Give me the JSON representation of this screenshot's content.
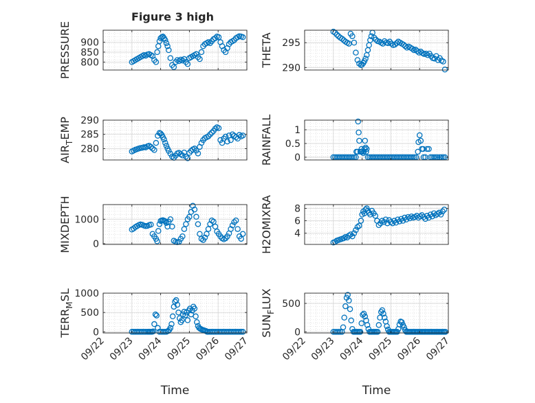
{
  "figure": {
    "title": "Figure 3 high"
  },
  "x_axis": {
    "label": "Time",
    "ticks": [
      "09/22",
      "09/23",
      "09/24",
      "09/25",
      "09/26",
      "09/27"
    ]
  },
  "colors": {
    "series": "#0072BD",
    "grid": "#d9d9d9",
    "axis": "#262626"
  },
  "chart_data": [
    {
      "type": "scatter",
      "ylabel": "PRESSURE",
      "ylabel_parts": [
        "PRESSURE",
        "",
        ""
      ],
      "ylim": [
        760,
        960
      ],
      "yticks": [
        800,
        850,
        900
      ],
      "ytick_labels": [
        "800",
        "850",
        "900"
      ],
      "x": [
        1.0,
        1.06,
        1.12,
        1.18,
        1.24,
        1.3,
        1.36,
        1.42,
        1.48,
        1.54,
        1.6,
        1.66,
        1.72,
        1.78,
        1.84,
        1.88,
        1.92,
        1.96,
        2.0,
        2.04,
        2.08,
        2.12,
        2.16,
        2.2,
        2.24,
        2.28,
        2.34,
        2.4,
        2.46,
        2.52,
        2.58,
        2.64,
        2.7,
        2.76,
        2.82,
        2.88,
        2.94,
        3.0,
        3.06,
        3.12,
        3.18,
        3.24,
        3.3,
        3.36,
        3.42,
        3.48,
        3.54,
        3.6,
        3.66,
        3.72,
        3.78,
        3.84,
        3.9,
        3.96,
        4.02,
        4.08,
        4.14,
        4.2,
        4.26,
        4.32,
        4.38,
        4.44,
        4.5,
        4.56,
        4.62,
        4.68,
        4.74,
        4.8,
        4.86
      ],
      "y": [
        800,
        805,
        810,
        815,
        820,
        825,
        830,
        835,
        832,
        838,
        840,
        835,
        830,
        810,
        800,
        850,
        880,
        905,
        920,
        925,
        928,
        920,
        910,
        895,
        880,
        860,
        820,
        785,
        775,
        800,
        810,
        805,
        812,
        808,
        815,
        800,
        790,
        820,
        825,
        830,
        835,
        840,
        825,
        815,
        850,
        880,
        890,
        895,
        900,
        895,
        905,
        915,
        920,
        928,
        925,
        900,
        880,
        860,
        850,
        870,
        890,
        900,
        905,
        910,
        920,
        925,
        930,
        928,
        925
      ]
    },
    {
      "type": "scatter",
      "ylabel": "THETA",
      "ylabel_parts": [
        "THETA",
        "",
        ""
      ],
      "ylim": [
        289.5,
        297.5
      ],
      "yticks": [
        290,
        295
      ],
      "ytick_labels": [
        "290",
        "295"
      ],
      "x": [
        1.0,
        1.06,
        1.12,
        1.18,
        1.24,
        1.3,
        1.36,
        1.42,
        1.48,
        1.54,
        1.6,
        1.66,
        1.72,
        1.78,
        1.84,
        1.9,
        1.96,
        2.0,
        2.04,
        2.08,
        2.12,
        2.16,
        2.2,
        2.24,
        2.28,
        2.32,
        2.36,
        2.42,
        2.48,
        2.54,
        2.6,
        2.66,
        2.72,
        2.78,
        2.84,
        2.9,
        2.96,
        3.02,
        3.08,
        3.14,
        3.2,
        3.26,
        3.32,
        3.38,
        3.44,
        3.5,
        3.56,
        3.62,
        3.68,
        3.74,
        3.8,
        3.86,
        3.92,
        3.98,
        4.04,
        4.1,
        4.16,
        4.22,
        4.28,
        4.34,
        4.4,
        4.46,
        4.52,
        4.58,
        4.64,
        4.7,
        4.76,
        4.82,
        4.88
      ],
      "y": [
        297.2,
        297.0,
        296.6,
        296.3,
        296.0,
        295.8,
        295.5,
        295.2,
        295.0,
        294.8,
        296.8,
        296.3,
        295.0,
        293.0,
        291.5,
        290.8,
        290.5,
        290.6,
        290.9,
        291.3,
        291.8,
        292.5,
        293.5,
        294.5,
        295.5,
        296.3,
        297.0,
        296.0,
        295.6,
        295.3,
        295.2,
        295.0,
        294.8,
        295.3,
        295.0,
        294.9,
        295.2,
        294.8,
        294.5,
        294.6,
        294.9,
        295.2,
        295.0,
        294.8,
        294.6,
        294.3,
        294.0,
        294.2,
        294.0,
        293.8,
        293.5,
        293.6,
        293.3,
        293.0,
        293.2,
        292.9,
        292.7,
        292.8,
        292.5,
        292.8,
        292.3,
        291.9,
        291.8,
        292.3,
        291.5,
        291.9,
        291.4,
        291.2,
        289.6
      ]
    },
    {
      "type": "scatter",
      "ylabel": "AIR_TEMP",
      "ylabel_parts": [
        "AIR",
        "T",
        "EMP"
      ],
      "ylim": [
        276,
        290
      ],
      "yticks": [
        280,
        285,
        290
      ],
      "ytick_labels": [
        "280",
        "285",
        "290"
      ],
      "x": [
        1.0,
        1.06,
        1.12,
        1.18,
        1.24,
        1.3,
        1.36,
        1.42,
        1.48,
        1.54,
        1.6,
        1.66,
        1.72,
        1.78,
        1.84,
        1.9,
        1.96,
        2.0,
        2.04,
        2.08,
        2.12,
        2.16,
        2.2,
        2.24,
        2.28,
        2.34,
        2.4,
        2.46,
        2.52,
        2.58,
        2.64,
        2.7,
        2.76,
        2.82,
        2.88,
        2.94,
        3.0,
        3.06,
        3.12,
        3.18,
        3.24,
        3.3,
        3.36,
        3.42,
        3.48,
        3.54,
        3.6,
        3.66,
        3.72,
        3.78,
        3.84,
        3.9,
        3.96,
        4.02,
        4.08,
        4.14,
        4.2,
        4.26,
        4.32,
        4.38,
        4.44,
        4.5,
        4.56,
        4.62,
        4.68,
        4.74,
        4.8,
        4.86
      ],
      "y": [
        279.0,
        279.3,
        279.6,
        279.8,
        280.0,
        280.2,
        280.3,
        280.5,
        280.4,
        280.8,
        281.0,
        280.6,
        280.0,
        279.5,
        282.0,
        284.5,
        285.5,
        285.3,
        284.8,
        284.0,
        283.2,
        282.0,
        281.0,
        280.0,
        279.2,
        278.2,
        277.2,
        276.8,
        277.5,
        278.3,
        278.5,
        278.0,
        277.6,
        278.6,
        277.2,
        276.6,
        278.5,
        279.2,
        279.7,
        280.0,
        279.3,
        278.3,
        280.6,
        282.0,
        283.0,
        283.7,
        284.0,
        284.3,
        285.0,
        285.6,
        286.2,
        287.0,
        287.5,
        287.2,
        283.0,
        282.0,
        283.5,
        284.2,
        282.5,
        284.6,
        283.0,
        285.0,
        284.5,
        284.0,
        283.5,
        284.8,
        284.3,
        284.6
      ]
    },
    {
      "type": "scatter",
      "ylabel": "RAINFALL",
      "ylabel_parts": [
        "RAINFALL",
        "",
        ""
      ],
      "ylim": [
        -0.1,
        1.35
      ],
      "yticks": [
        0,
        0.5,
        1
      ],
      "ytick_labels": [
        "0",
        "0.5",
        "1"
      ],
      "x": [
        1.0,
        1.06,
        1.12,
        1.18,
        1.24,
        1.3,
        1.36,
        1.42,
        1.48,
        1.54,
        1.6,
        1.66,
        1.72,
        1.78,
        1.8,
        1.84,
        1.86,
        1.88,
        1.9,
        1.94,
        1.96,
        1.98,
        2.0,
        2.04,
        2.06,
        2.08,
        2.1,
        2.12,
        2.14,
        2.16,
        2.2,
        2.26,
        2.32,
        2.38,
        2.44,
        2.5,
        2.56,
        2.62,
        2.68,
        2.74,
        2.8,
        2.86,
        2.92,
        2.98,
        3.04,
        3.1,
        3.16,
        3.22,
        3.28,
        3.34,
        3.4,
        3.46,
        3.52,
        3.58,
        3.64,
        3.7,
        3.76,
        3.82,
        3.88,
        3.94,
        3.96,
        4.0,
        4.04,
        4.08,
        4.12,
        4.14,
        4.2,
        4.26,
        4.32,
        4.38,
        4.44,
        4.5,
        4.56,
        4.62,
        4.7,
        4.76,
        4.82,
        4.88
      ],
      "y": [
        0,
        0,
        0,
        0,
        0,
        0,
        0,
        0,
        0,
        0,
        0,
        0,
        0,
        0,
        0.2,
        0.2,
        1.3,
        0.9,
        0.6,
        0.2,
        0.2,
        0.3,
        0.2,
        0.15,
        0.2,
        0.3,
        0.6,
        0.35,
        0.2,
        0.3,
        0,
        0,
        0,
        0,
        0,
        0,
        0,
        0,
        0,
        0,
        0,
        0,
        0,
        0,
        0,
        0,
        0,
        0,
        0,
        0,
        0,
        0,
        0,
        0,
        0,
        0,
        0,
        0,
        0,
        0.2,
        0.55,
        0.8,
        0.6,
        0.3,
        0.3,
        0,
        0,
        0.3,
        0.3,
        0,
        0,
        0,
        0,
        0,
        0,
        0,
        0,
        0
      ]
    },
    {
      "type": "scatter",
      "ylabel": "MIXDEPTH",
      "ylabel_parts": [
        "MIXDEPTH",
        "",
        ""
      ],
      "ylim": [
        -30,
        1600
      ],
      "yticks": [
        0,
        1000
      ],
      "ytick_labels": [
        "0",
        "1000"
      ],
      "x": [
        1.0,
        1.06,
        1.12,
        1.18,
        1.24,
        1.3,
        1.36,
        1.42,
        1.48,
        1.54,
        1.6,
        1.66,
        1.72,
        1.78,
        1.84,
        1.88,
        1.92,
        1.96,
        2.0,
        2.04,
        2.08,
        2.12,
        2.16,
        2.2,
        2.24,
        2.28,
        2.34,
        2.4,
        2.46,
        2.52,
        2.58,
        2.64,
        2.7,
        2.76,
        2.82,
        2.88,
        2.94,
        3.0,
        3.06,
        3.12,
        3.18,
        3.24,
        3.3,
        3.36,
        3.42,
        3.48,
        3.54,
        3.6,
        3.66,
        3.72,
        3.78,
        3.84,
        3.9,
        3.96,
        4.02,
        4.08,
        4.14,
        4.2,
        4.26,
        4.32,
        4.38,
        4.44,
        4.5,
        4.56,
        4.62,
        4.68,
        4.74,
        4.8,
        4.86
      ],
      "y": [
        580,
        620,
        680,
        720,
        760,
        790,
        770,
        740,
        720,
        730,
        760,
        780,
        400,
        300,
        200,
        100,
        520,
        800,
        930,
        950,
        960,
        940,
        920,
        850,
        700,
        900,
        1000,
        700,
        120,
        80,
        60,
        80,
        200,
        300,
        600,
        800,
        1000,
        1100,
        1300,
        1550,
        1400,
        1100,
        800,
        400,
        200,
        150,
        250,
        400,
        600,
        800,
        950,
        900,
        700,
        500,
        400,
        300,
        220,
        180,
        220,
        300,
        420,
        600,
        750,
        880,
        950,
        600,
        300,
        200,
        400
      ]
    },
    {
      "type": "scatter",
      "ylabel": "H2OMIXRA",
      "ylabel_parts": [
        "H2OMIXRA",
        "",
        ""
      ],
      "ylim": [
        2.2,
        8.6
      ],
      "yticks": [
        4,
        6,
        8
      ],
      "ytick_labels": [
        "4",
        "6",
        "8"
      ],
      "x": [
        1.0,
        1.06,
        1.12,
        1.18,
        1.24,
        1.3,
        1.36,
        1.42,
        1.48,
        1.54,
        1.6,
        1.66,
        1.72,
        1.78,
        1.84,
        1.9,
        1.96,
        2.0,
        2.04,
        2.08,
        2.12,
        2.16,
        2.2,
        2.24,
        2.28,
        2.34,
        2.4,
        2.46,
        2.52,
        2.58,
        2.64,
        2.7,
        2.76,
        2.82,
        2.88,
        2.94,
        3.0,
        3.06,
        3.12,
        3.18,
        3.24,
        3.3,
        3.36,
        3.42,
        3.48,
        3.54,
        3.6,
        3.66,
        3.72,
        3.78,
        3.84,
        3.9,
        3.96,
        4.02,
        4.08,
        4.14,
        4.2,
        4.26,
        4.32,
        4.38,
        4.44,
        4.5,
        4.56,
        4.62,
        4.68,
        4.74,
        4.8,
        4.86
      ],
      "y": [
        2.5,
        2.6,
        2.8,
        2.9,
        3.0,
        3.1,
        3.2,
        3.4,
        3.3,
        3.6,
        3.8,
        3.5,
        4.0,
        4.5,
        5.0,
        5.2,
        6.0,
        7.0,
        7.5,
        7.2,
        7.8,
        8.0,
        7.6,
        7.3,
        7.0,
        7.6,
        7.2,
        6.8,
        6.0,
        5.3,
        5.6,
        6.0,
        5.8,
        6.2,
        5.6,
        6.1,
        5.8,
        5.6,
        6.0,
        5.7,
        6.2,
        5.9,
        6.3,
        6.0,
        6.5,
        6.2,
        6.6,
        6.4,
        6.7,
        6.5,
        6.6,
        6.8,
        6.5,
        6.7,
        6.9,
        6.6,
        6.3,
        6.8,
        6.5,
        7.0,
        6.7,
        7.2,
        6.9,
        7.1,
        7.3,
        7.0,
        7.5,
        7.8
      ]
    },
    {
      "type": "scatter",
      "ylabel": "TERR_MSL",
      "ylabel_parts": [
        "TERR",
        "M",
        "SL"
      ],
      "ylim": [
        -30,
        1000
      ],
      "yticks": [
        0,
        500,
        1000
      ],
      "ytick_labels": [
        "0",
        "500",
        "1000"
      ],
      "x": [
        1.0,
        1.06,
        1.12,
        1.18,
        1.24,
        1.3,
        1.36,
        1.42,
        1.48,
        1.54,
        1.58,
        1.62,
        1.66,
        1.7,
        1.74,
        1.78,
        1.82,
        1.86,
        1.9,
        1.96,
        2.02,
        2.08,
        2.14,
        2.2,
        2.26,
        2.3,
        2.34,
        2.38,
        2.42,
        2.46,
        2.5,
        2.54,
        2.58,
        2.62,
        2.66,
        2.7,
        2.74,
        2.78,
        2.82,
        2.86,
        2.9,
        2.94,
        2.98,
        3.02,
        3.06,
        3.1,
        3.14,
        3.18,
        3.22,
        3.26,
        3.3,
        3.34,
        3.38,
        3.42,
        3.46,
        3.5,
        3.54,
        3.58,
        3.62,
        3.66,
        3.72,
        3.78,
        3.84,
        3.9,
        3.96,
        4.02,
        4.08,
        4.14,
        4.2,
        4.26,
        4.32,
        4.38,
        4.44,
        4.5,
        4.56,
        4.62,
        4.68,
        4.74,
        4.8,
        4.86
      ],
      "y": [
        0,
        0,
        0,
        0,
        0,
        0,
        0,
        0,
        0,
        0,
        0,
        0,
        0,
        0,
        10,
        200,
        450,
        420,
        100,
        0,
        0,
        0,
        0,
        0,
        20,
        50,
        100,
        200,
        400,
        650,
        780,
        820,
        700,
        500,
        350,
        250,
        300,
        450,
        520,
        430,
        500,
        300,
        550,
        600,
        450,
        550,
        650,
        600,
        400,
        250,
        150,
        100,
        80,
        60,
        50,
        40,
        30,
        20,
        0,
        0,
        0,
        0,
        0,
        0,
        0,
        0,
        0,
        0,
        0,
        0,
        0,
        0,
        0,
        0,
        0,
        0,
        0,
        0,
        0,
        0
      ]
    },
    {
      "type": "scatter",
      "ylabel": "SUN_FLUX",
      "ylabel_parts": [
        "SUN",
        "F",
        "LUX"
      ],
      "ylim": [
        -20,
        680
      ],
      "yticks": [
        0,
        500
      ],
      "ytick_labels": [
        "0",
        "500"
      ],
      "x": [
        1.0,
        1.06,
        1.12,
        1.18,
        1.24,
        1.3,
        1.34,
        1.38,
        1.42,
        1.46,
        1.5,
        1.54,
        1.58,
        1.62,
        1.66,
        1.7,
        1.74,
        1.78,
        1.82,
        1.86,
        1.9,
        1.94,
        1.98,
        2.02,
        2.06,
        2.1,
        2.14,
        2.18,
        2.22,
        2.26,
        2.3,
        2.34,
        2.38,
        2.42,
        2.46,
        2.5,
        2.54,
        2.58,
        2.62,
        2.66,
        2.7,
        2.74,
        2.78,
        2.82,
        2.86,
        2.9,
        2.94,
        2.98,
        3.02,
        3.06,
        3.1,
        3.14,
        3.18,
        3.22,
        3.26,
        3.3,
        3.34,
        3.38,
        3.42,
        3.46,
        3.5,
        3.54,
        3.58,
        3.62,
        3.66,
        3.7,
        3.74,
        3.78,
        3.82,
        3.86,
        3.9,
        3.94,
        3.98,
        4.02,
        4.06,
        4.1,
        4.14,
        4.18,
        4.22,
        4.26,
        4.3,
        4.34,
        4.38,
        4.42,
        4.46,
        4.5,
        4.54,
        4.58,
        4.62,
        4.66,
        4.7,
        4.74,
        4.78,
        4.82,
        4.86,
        4.9
      ],
      "y": [
        0,
        0,
        0,
        0,
        0,
        0,
        80,
        250,
        450,
        600,
        650,
        550,
        400,
        200,
        50,
        0,
        0,
        0,
        0,
        0,
        0,
        0,
        150,
        300,
        320,
        270,
        200,
        120,
        50,
        0,
        0,
        0,
        0,
        0,
        0,
        0,
        0,
        120,
        250,
        350,
        380,
        320,
        250,
        180,
        100,
        40,
        0,
        0,
        0,
        0,
        0,
        0,
        0,
        0,
        50,
        130,
        180,
        170,
        120,
        80,
        30,
        0,
        0,
        0,
        0,
        0,
        0,
        0,
        0,
        0,
        0,
        0,
        0,
        0,
        0,
        0,
        0,
        0,
        0,
        0,
        0,
        0,
        0,
        0,
        0,
        0,
        0,
        0,
        0,
        0,
        0,
        0,
        0,
        0,
        0,
        0
      ]
    }
  ]
}
